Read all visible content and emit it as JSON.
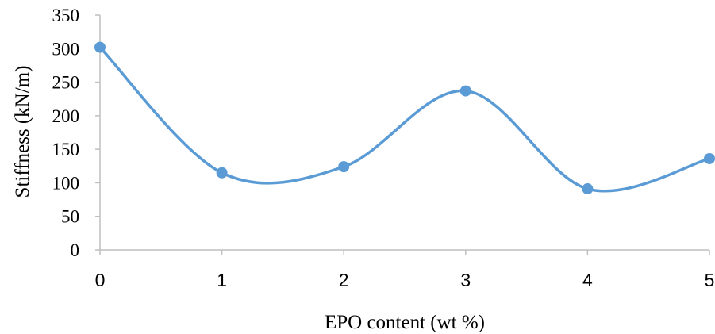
{
  "chart_data": {
    "type": "line",
    "smoothed": true,
    "title": "",
    "xlabel": "EPO content (wt %)",
    "ylabel": "Stiffness (kN/m)",
    "x": [
      0,
      1,
      2,
      3,
      4,
      5
    ],
    "y": [
      302,
      115,
      124,
      237,
      91,
      136
    ],
    "xlim": [
      0,
      5
    ],
    "ylim": [
      0,
      350
    ],
    "xticks": [
      "0",
      "1",
      "2",
      "3",
      "4",
      "5"
    ],
    "yticks": [
      "0",
      "50",
      "100",
      "150",
      "200",
      "250",
      "300",
      "350"
    ],
    "grid": false,
    "legend": "none",
    "colors": {
      "series": "#5b9bd5",
      "axis": "#bfbfbf"
    }
  }
}
